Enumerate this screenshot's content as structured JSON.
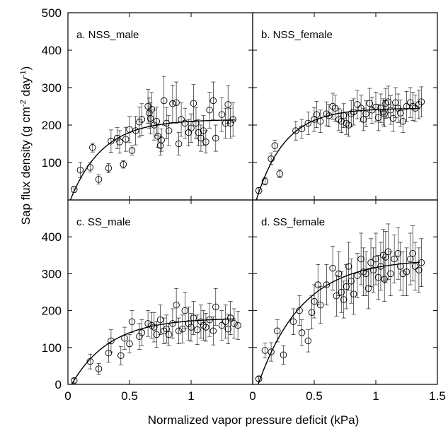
{
  "figure": {
    "ylabel_main": "Sap flux density (g cm",
    "ylabel_sup1": "-2",
    "ylabel_mid": " day",
    "ylabel_sup2": "-1",
    "ylabel_end": ")",
    "xlabel": "Normalized vapor pressure deficit (kPa)"
  },
  "chart_data": [
    {
      "type": "scatter",
      "title": "a. NSS_male",
      "xlim": [
        0,
        1.5
      ],
      "ylim": [
        0,
        500
      ],
      "xticks": [],
      "yticks": [
        "100",
        "200",
        "300",
        "400",
        "500"
      ],
      "fit_params": {
        "a": 215,
        "k": 3.8,
        "x0": 0.02
      },
      "points": [
        [
          0.05,
          28,
          8
        ],
        [
          0.1,
          80,
          20
        ],
        [
          0.18,
          87,
          12
        ],
        [
          0.2,
          140,
          12
        ],
        [
          0.25,
          55,
          12
        ],
        [
          0.33,
          85,
          12
        ],
        [
          0.35,
          157,
          30
        ],
        [
          0.4,
          165,
          28
        ],
        [
          0.42,
          155,
          30
        ],
        [
          0.45,
          95,
          10
        ],
        [
          0.47,
          162,
          32
        ],
        [
          0.5,
          188,
          35
        ],
        [
          0.52,
          132,
          12
        ],
        [
          0.55,
          185,
          38
        ],
        [
          0.58,
          208,
          40
        ],
        [
          0.6,
          215,
          42
        ],
        [
          0.65,
          250,
          45
        ],
        [
          0.66,
          232,
          40
        ],
        [
          0.67,
          218,
          42
        ],
        [
          0.68,
          242,
          45
        ],
        [
          0.7,
          200,
          40
        ],
        [
          0.72,
          210,
          38
        ],
        [
          0.73,
          170,
          30
        ],
        [
          0.75,
          145,
          25
        ],
        [
          0.76,
          160,
          30
        ],
        [
          0.78,
          265,
          65
        ],
        [
          0.8,
          205,
          42
        ],
        [
          0.82,
          185,
          40
        ],
        [
          0.85,
          257,
          50
        ],
        [
          0.88,
          260,
          55
        ],
        [
          0.9,
          150,
          30
        ],
        [
          0.92,
          215,
          45
        ],
        [
          0.95,
          205,
          40
        ],
        [
          0.98,
          180,
          35
        ],
        [
          1.0,
          192,
          38
        ],
        [
          1.02,
          258,
          50
        ],
        [
          1.04,
          205,
          42
        ],
        [
          1.06,
          180,
          35
        ],
        [
          1.08,
          165,
          35
        ],
        [
          1.1,
          185,
          40
        ],
        [
          1.12,
          155,
          30
        ],
        [
          1.15,
          240,
          48
        ],
        [
          1.18,
          265,
          50
        ],
        [
          1.2,
          165,
          35
        ],
        [
          1.25,
          228,
          45
        ],
        [
          1.28,
          205,
          40
        ],
        [
          1.3,
          255,
          50
        ],
        [
          1.32,
          205,
          40
        ],
        [
          1.34,
          215,
          45
        ]
      ]
    },
    {
      "type": "scatter",
      "title": "b. NSS_female",
      "xlim": [
        0,
        1.5
      ],
      "ylim": [
        0,
        500
      ],
      "xticks": [],
      "yticks": [],
      "fit_params": {
        "a": 245,
        "k": 4.3,
        "x0": 0.03
      },
      "points": [
        [
          0.05,
          25,
          8
        ],
        [
          0.1,
          50,
          10
        ],
        [
          0.15,
          110,
          15
        ],
        [
          0.18,
          145,
          15
        ],
        [
          0.22,
          70,
          10
        ],
        [
          0.35,
          185,
          25
        ],
        [
          0.4,
          190,
          25
        ],
        [
          0.45,
          205,
          30
        ],
        [
          0.5,
          215,
          32
        ],
        [
          0.52,
          228,
          35
        ],
        [
          0.55,
          210,
          30
        ],
        [
          0.6,
          230,
          32
        ],
        [
          0.62,
          225,
          30
        ],
        [
          0.65,
          250,
          35
        ],
        [
          0.67,
          245,
          35
        ],
        [
          0.7,
          215,
          30
        ],
        [
          0.72,
          210,
          30
        ],
        [
          0.74,
          225,
          32
        ],
        [
          0.76,
          205,
          30
        ],
        [
          0.78,
          200,
          30
        ],
        [
          0.8,
          230,
          35
        ],
        [
          0.82,
          235,
          35
        ],
        [
          0.85,
          255,
          38
        ],
        [
          0.88,
          245,
          35
        ],
        [
          0.9,
          215,
          30
        ],
        [
          0.92,
          230,
          35
        ],
        [
          0.95,
          258,
          40
        ],
        [
          0.97,
          240,
          35
        ],
        [
          1.0,
          248,
          40
        ],
        [
          1.02,
          220,
          35
        ],
        [
          1.04,
          245,
          38
        ],
        [
          1.06,
          235,
          35
        ],
        [
          1.07,
          230,
          35
        ],
        [
          1.08,
          258,
          40
        ],
        [
          1.1,
          262,
          42
        ],
        [
          1.12,
          240,
          38
        ],
        [
          1.14,
          218,
          35
        ],
        [
          1.16,
          260,
          40
        ],
        [
          1.18,
          245,
          38
        ],
        [
          1.2,
          232,
          35
        ],
        [
          1.22,
          210,
          30
        ],
        [
          1.25,
          250,
          40
        ],
        [
          1.28,
          260,
          40
        ],
        [
          1.3,
          250,
          38
        ],
        [
          1.32,
          245,
          35
        ],
        [
          1.35,
          255,
          38
        ],
        [
          1.37,
          262,
          40
        ]
      ]
    },
    {
      "type": "scatter",
      "title": "c. SS_male",
      "xlim": [
        0,
        1.5
      ],
      "ylim": [
        0,
        500
      ],
      "xticks": [
        "0",
        "0.5",
        "1"
      ],
      "yticks": [
        "0",
        "100",
        "200",
        "300",
        "400"
      ],
      "fit_params": {
        "a": 180,
        "k": 3.2,
        "x0": 0.03
      },
      "points": [
        [
          0.05,
          10,
          6
        ],
        [
          0.18,
          62,
          20
        ],
        [
          0.25,
          42,
          15
        ],
        [
          0.33,
          85,
          25
        ],
        [
          0.35,
          118,
          30
        ],
        [
          0.43,
          78,
          25
        ],
        [
          0.46,
          125,
          30
        ],
        [
          0.5,
          110,
          25
        ],
        [
          0.52,
          170,
          30
        ],
        [
          0.58,
          130,
          35
        ],
        [
          0.6,
          140,
          35
        ],
        [
          0.65,
          165,
          35
        ],
        [
          0.68,
          160,
          35
        ],
        [
          0.7,
          155,
          40
        ],
        [
          0.72,
          135,
          35
        ],
        [
          0.75,
          175,
          40
        ],
        [
          0.78,
          145,
          35
        ],
        [
          0.8,
          150,
          38
        ],
        [
          0.82,
          135,
          30
        ],
        [
          0.85,
          165,
          40
        ],
        [
          0.88,
          215,
          45
        ],
        [
          0.9,
          145,
          35
        ],
        [
          0.93,
          150,
          38
        ],
        [
          0.95,
          200,
          50
        ],
        [
          0.98,
          165,
          45
        ],
        [
          1.0,
          155,
          38
        ],
        [
          1.02,
          180,
          45
        ],
        [
          1.05,
          148,
          40
        ],
        [
          1.08,
          170,
          45
        ],
        [
          1.1,
          160,
          40
        ],
        [
          1.12,
          155,
          38
        ],
        [
          1.15,
          175,
          45
        ],
        [
          1.18,
          145,
          38
        ],
        [
          1.2,
          210,
          50
        ],
        [
          1.25,
          160,
          40
        ],
        [
          1.28,
          170,
          45
        ],
        [
          1.3,
          150,
          40
        ],
        [
          1.32,
          180,
          45
        ],
        [
          1.35,
          165,
          40
        ],
        [
          1.38,
          160,
          38
        ]
      ]
    },
    {
      "type": "scatter",
      "title": "d. SS_female",
      "xlim": [
        0,
        1.5
      ],
      "ylim": [
        0,
        500
      ],
      "xticks": [
        "0",
        "0.5",
        "1",
        "1.5"
      ],
      "yticks": [],
      "fit_params": {
        "a": 340,
        "k": 2.8,
        "x0": 0.045
      },
      "points": [
        [
          0.05,
          15,
          6
        ],
        [
          0.1,
          92,
          20
        ],
        [
          0.15,
          88,
          25
        ],
        [
          0.2,
          145,
          30
        ],
        [
          0.25,
          80,
          25
        ],
        [
          0.33,
          170,
          35
        ],
        [
          0.38,
          200,
          40
        ],
        [
          0.4,
          140,
          35
        ],
        [
          0.45,
          118,
          30
        ],
        [
          0.48,
          195,
          45
        ],
        [
          0.5,
          225,
          45
        ],
        [
          0.53,
          270,
          55
        ],
        [
          0.55,
          215,
          50
        ],
        [
          0.6,
          270,
          55
        ],
        [
          0.65,
          315,
          60
        ],
        [
          0.68,
          240,
          55
        ],
        [
          0.7,
          300,
          60
        ],
        [
          0.72,
          250,
          55
        ],
        [
          0.74,
          230,
          50
        ],
        [
          0.76,
          265,
          60
        ],
        [
          0.78,
          320,
          65
        ],
        [
          0.8,
          280,
          60
        ],
        [
          0.82,
          245,
          55
        ],
        [
          0.85,
          295,
          60
        ],
        [
          0.88,
          340,
          70
        ],
        [
          0.9,
          305,
          65
        ],
        [
          0.92,
          300,
          60
        ],
        [
          0.94,
          260,
          55
        ],
        [
          0.96,
          330,
          65
        ],
        [
          0.98,
          310,
          60
        ],
        [
          1.0,
          340,
          70
        ],
        [
          1.02,
          290,
          60
        ],
        [
          1.04,
          320,
          65
        ],
        [
          1.06,
          350,
          70
        ],
        [
          1.07,
          285,
          60
        ],
        [
          1.08,
          345,
          70
        ],
        [
          1.1,
          360,
          75
        ],
        [
          1.12,
          300,
          60
        ],
        [
          1.15,
          340,
          65
        ],
        [
          1.18,
          355,
          70
        ],
        [
          1.2,
          320,
          65
        ],
        [
          1.22,
          300,
          60
        ],
        [
          1.25,
          305,
          65
        ],
        [
          1.28,
          340,
          70
        ],
        [
          1.3,
          355,
          75
        ],
        [
          1.32,
          320,
          65
        ],
        [
          1.35,
          310,
          60
        ],
        [
          1.37,
          330,
          65
        ]
      ]
    }
  ]
}
